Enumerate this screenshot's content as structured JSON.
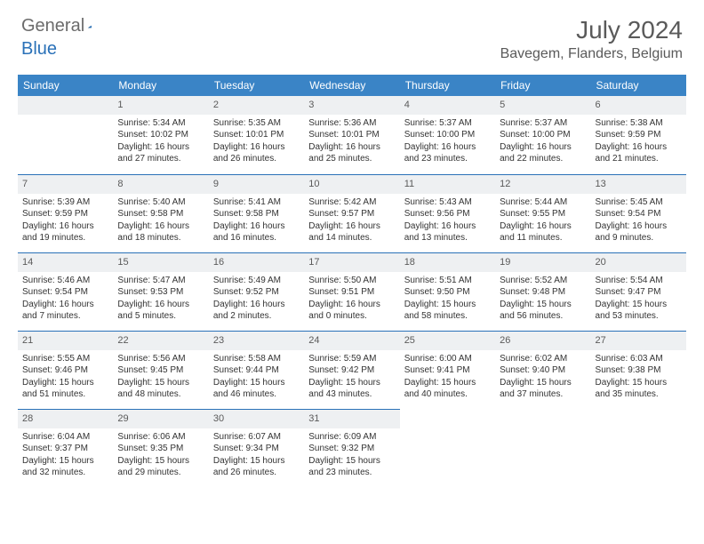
{
  "brand": {
    "general": "General",
    "blue": "Blue"
  },
  "title": "July 2024",
  "location": "Bavegem, Flanders, Belgium",
  "colors": {
    "header_bg": "#3a84c6",
    "accent": "#2a71b8",
    "daynum_bg": "#eef0f2",
    "text": "#333333",
    "muted": "#5a5a5a"
  },
  "weekdays": [
    "Sunday",
    "Monday",
    "Tuesday",
    "Wednesday",
    "Thursday",
    "Friday",
    "Saturday"
  ],
  "first_day_index": 1,
  "days": [
    {
      "n": 1,
      "sunrise": "5:34 AM",
      "sunset": "10:02 PM",
      "daylight": "16 hours and 27 minutes."
    },
    {
      "n": 2,
      "sunrise": "5:35 AM",
      "sunset": "10:01 PM",
      "daylight": "16 hours and 26 minutes."
    },
    {
      "n": 3,
      "sunrise": "5:36 AM",
      "sunset": "10:01 PM",
      "daylight": "16 hours and 25 minutes."
    },
    {
      "n": 4,
      "sunrise": "5:37 AM",
      "sunset": "10:00 PM",
      "daylight": "16 hours and 23 minutes."
    },
    {
      "n": 5,
      "sunrise": "5:37 AM",
      "sunset": "10:00 PM",
      "daylight": "16 hours and 22 minutes."
    },
    {
      "n": 6,
      "sunrise": "5:38 AM",
      "sunset": "9:59 PM",
      "daylight": "16 hours and 21 minutes."
    },
    {
      "n": 7,
      "sunrise": "5:39 AM",
      "sunset": "9:59 PM",
      "daylight": "16 hours and 19 minutes."
    },
    {
      "n": 8,
      "sunrise": "5:40 AM",
      "sunset": "9:58 PM",
      "daylight": "16 hours and 18 minutes."
    },
    {
      "n": 9,
      "sunrise": "5:41 AM",
      "sunset": "9:58 PM",
      "daylight": "16 hours and 16 minutes."
    },
    {
      "n": 10,
      "sunrise": "5:42 AM",
      "sunset": "9:57 PM",
      "daylight": "16 hours and 14 minutes."
    },
    {
      "n": 11,
      "sunrise": "5:43 AM",
      "sunset": "9:56 PM",
      "daylight": "16 hours and 13 minutes."
    },
    {
      "n": 12,
      "sunrise": "5:44 AM",
      "sunset": "9:55 PM",
      "daylight": "16 hours and 11 minutes."
    },
    {
      "n": 13,
      "sunrise": "5:45 AM",
      "sunset": "9:54 PM",
      "daylight": "16 hours and 9 minutes."
    },
    {
      "n": 14,
      "sunrise": "5:46 AM",
      "sunset": "9:54 PM",
      "daylight": "16 hours and 7 minutes."
    },
    {
      "n": 15,
      "sunrise": "5:47 AM",
      "sunset": "9:53 PM",
      "daylight": "16 hours and 5 minutes."
    },
    {
      "n": 16,
      "sunrise": "5:49 AM",
      "sunset": "9:52 PM",
      "daylight": "16 hours and 2 minutes."
    },
    {
      "n": 17,
      "sunrise": "5:50 AM",
      "sunset": "9:51 PM",
      "daylight": "16 hours and 0 minutes."
    },
    {
      "n": 18,
      "sunrise": "5:51 AM",
      "sunset": "9:50 PM",
      "daylight": "15 hours and 58 minutes."
    },
    {
      "n": 19,
      "sunrise": "5:52 AM",
      "sunset": "9:48 PM",
      "daylight": "15 hours and 56 minutes."
    },
    {
      "n": 20,
      "sunrise": "5:54 AM",
      "sunset": "9:47 PM",
      "daylight": "15 hours and 53 minutes."
    },
    {
      "n": 21,
      "sunrise": "5:55 AM",
      "sunset": "9:46 PM",
      "daylight": "15 hours and 51 minutes."
    },
    {
      "n": 22,
      "sunrise": "5:56 AM",
      "sunset": "9:45 PM",
      "daylight": "15 hours and 48 minutes."
    },
    {
      "n": 23,
      "sunrise": "5:58 AM",
      "sunset": "9:44 PM",
      "daylight": "15 hours and 46 minutes."
    },
    {
      "n": 24,
      "sunrise": "5:59 AM",
      "sunset": "9:42 PM",
      "daylight": "15 hours and 43 minutes."
    },
    {
      "n": 25,
      "sunrise": "6:00 AM",
      "sunset": "9:41 PM",
      "daylight": "15 hours and 40 minutes."
    },
    {
      "n": 26,
      "sunrise": "6:02 AM",
      "sunset": "9:40 PM",
      "daylight": "15 hours and 37 minutes."
    },
    {
      "n": 27,
      "sunrise": "6:03 AM",
      "sunset": "9:38 PM",
      "daylight": "15 hours and 35 minutes."
    },
    {
      "n": 28,
      "sunrise": "6:04 AM",
      "sunset": "9:37 PM",
      "daylight": "15 hours and 32 minutes."
    },
    {
      "n": 29,
      "sunrise": "6:06 AM",
      "sunset": "9:35 PM",
      "daylight": "15 hours and 29 minutes."
    },
    {
      "n": 30,
      "sunrise": "6:07 AM",
      "sunset": "9:34 PM",
      "daylight": "15 hours and 26 minutes."
    },
    {
      "n": 31,
      "sunrise": "6:09 AM",
      "sunset": "9:32 PM",
      "daylight": "15 hours and 23 minutes."
    }
  ],
  "labels": {
    "sunrise": "Sunrise:",
    "sunset": "Sunset:",
    "daylight": "Daylight:"
  }
}
